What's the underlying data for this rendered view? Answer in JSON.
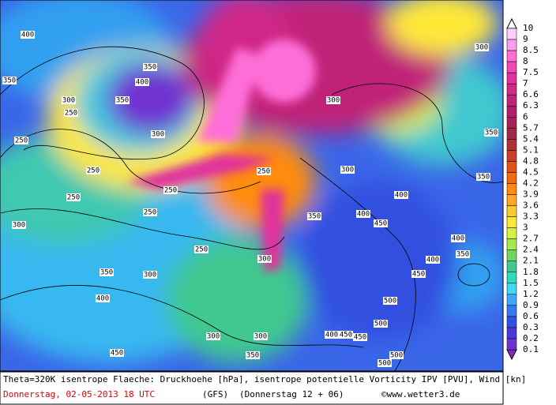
{
  "colorbar": {
    "levels": [
      10,
      9,
      8.5,
      8,
      7.5,
      7,
      6.6,
      6.3,
      6,
      5.7,
      5.4,
      5.1,
      4.8,
      4.5,
      4.2,
      3.9,
      3.6,
      3.3,
      3,
      2.7,
      2.4,
      2.1,
      1.8,
      1.5,
      1.2,
      0.9,
      0.6,
      0.3,
      0.2,
      0.1
    ],
    "colors": [
      "#ffd0ff",
      "#ff9cf0",
      "#ff6ed8",
      "#f046b8",
      "#e0309c",
      "#d02888",
      "#c02478",
      "#b02068",
      "#a82058",
      "#a02848",
      "#b03038",
      "#c83c28",
      "#e05018",
      "#f06a10",
      "#ff8c10",
      "#ffa828",
      "#ffc830",
      "#ffe838",
      "#d8f040",
      "#a8e850",
      "#70d860",
      "#40c890",
      "#30d8c0",
      "#40d8f0",
      "#40a8f8",
      "#3878f0",
      "#3050e0",
      "#4838d8",
      "#7030d0"
    ]
  },
  "contour_labels": [
    400,
    350,
    400,
    350,
    300,
    250,
    350,
    300,
    250,
    250,
    250,
    250,
    250,
    300,
    350,
    300,
    400,
    250,
    300,
    300,
    300,
    350,
    400,
    400,
    450,
    300,
    350,
    350,
    400,
    400,
    350,
    450,
    500,
    500,
    400,
    450,
    450,
    500,
    500,
    450,
    350,
    300,
    300,
    250
  ],
  "footer": {
    "caption": "Theta=320K isentrope Flaeche: Druckhoehe [hPa], isentrope potentielle Vorticity IPV [PVU], Wind [kn]",
    "date": "Donnerstag, 02-05-2013  18 UTC",
    "model": "(GFS)",
    "run": "(Donnerstag 12 + 06)",
    "copyright": "©www.wetter3.de"
  }
}
